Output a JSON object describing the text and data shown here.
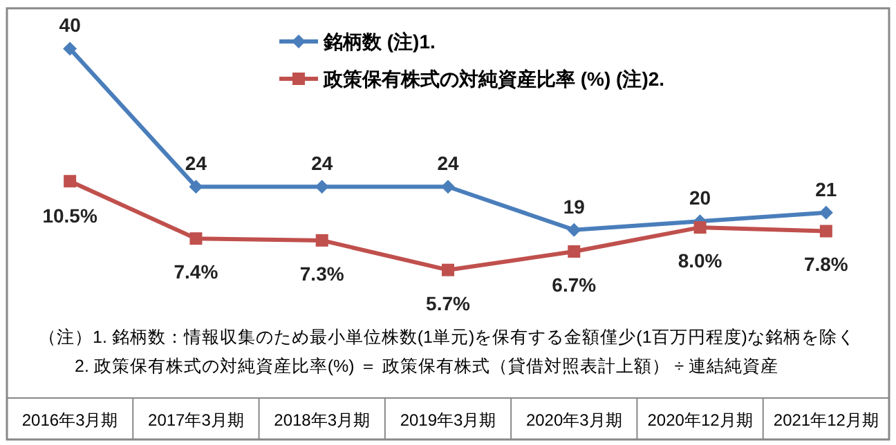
{
  "chart_data": {
    "type": "line",
    "categories": [
      "2016年3月期",
      "2017年3月期",
      "2018年3月期",
      "2019年3月期",
      "2020年3月期",
      "2020年12月期",
      "2021年12月期"
    ],
    "series": [
      {
        "name": "銘柄数  (注)1.",
        "color": "#4a7ebb",
        "marker": "diamond",
        "values": [
          40,
          24,
          24,
          24,
          19,
          20,
          21
        ],
        "value_labels": [
          "40",
          "24",
          "24",
          "24",
          "19",
          "20",
          "21"
        ]
      },
      {
        "name": "政策保有株式の対純資産比率 (%)  (注)2.",
        "color": "#c0504d",
        "marker": "square",
        "axis": "y2",
        "values": [
          10.5,
          7.4,
          7.3,
          5.7,
          6.7,
          8.0,
          7.8
        ],
        "value_labels": [
          "10.5%",
          "7.4%",
          "7.3%",
          "5.7%",
          "6.7%",
          "8.0%",
          "7.8%"
        ]
      }
    ],
    "ylim": [
      0,
      45
    ],
    "y2lim": [
      -1,
      20
    ],
    "tick_labels": "x",
    "legend": "top",
    "line_style": "solid",
    "annotations": [
      "（注）1.  銘柄数：情報収集のため最小単位株数(1単元)を保有する金額僅少(1百万円程度)な銘柄を除く",
      "2.  政策保有株式の対純資産比率(%) ＝ 政策保有株式（貸借対照表計上額） ÷ 連結純資産"
    ]
  }
}
